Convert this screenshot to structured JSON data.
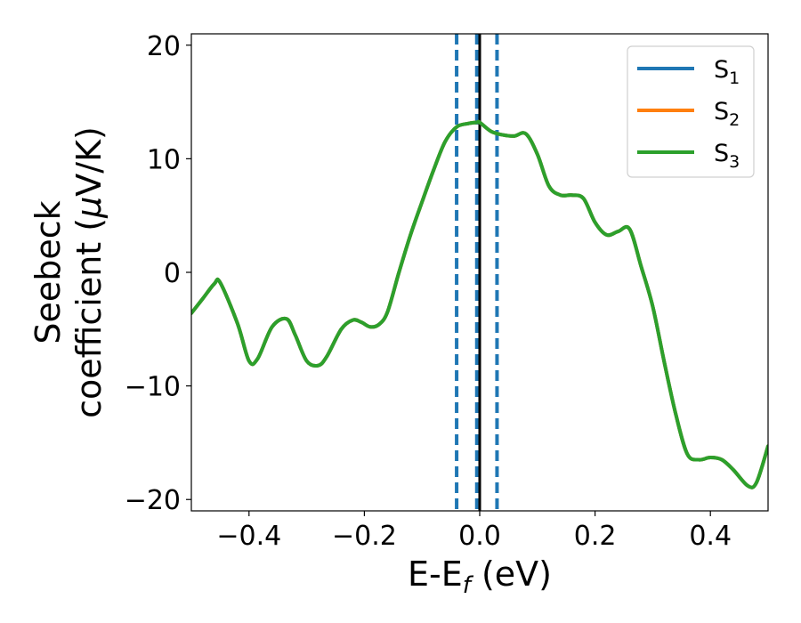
{
  "chart_data": {
    "type": "line",
    "xlabel": {
      "main": "E-E",
      "sub": "f",
      "unit": " (eV)"
    },
    "ylabel": {
      "line1": "Seebeck",
      "line2": "coefficient  (",
      "mu": "μ",
      "unit": "V/K)"
    },
    "xlim": [
      -0.5,
      0.5
    ],
    "ylim": [
      -21,
      21
    ],
    "x_ticks": [
      -0.4,
      -0.2,
      0.0,
      0.2,
      0.4
    ],
    "x_tick_labels": [
      "−0.4",
      "−0.2",
      "0.0",
      "0.2",
      "0.4"
    ],
    "y_ticks": [
      -20,
      -10,
      0,
      10,
      20
    ],
    "y_tick_labels": [
      "−20",
      "−10",
      "0",
      "10",
      "20"
    ],
    "grid": false,
    "legend_position": "top-right",
    "series": [
      {
        "name": "S",
        "sub": "1",
        "color": "#1f77b4",
        "x": [
          -0.5,
          -0.48,
          -0.46,
          -0.45,
          -0.42,
          -0.4,
          -0.385,
          -0.36,
          -0.335,
          -0.32,
          -0.3,
          -0.28,
          -0.265,
          -0.24,
          -0.22,
          -0.205,
          -0.19,
          -0.175,
          -0.16,
          -0.14,
          -0.12,
          -0.1,
          -0.08,
          -0.06,
          -0.04,
          -0.02,
          -0.005,
          0.0,
          0.02,
          0.04,
          0.06,
          0.08,
          0.1,
          0.12,
          0.14,
          0.16,
          0.18,
          0.2,
          0.22,
          0.24,
          0.26,
          0.28,
          0.3,
          0.32,
          0.34,
          0.36,
          0.38,
          0.4,
          0.42,
          0.44,
          0.465,
          0.48,
          0.5
        ],
        "y": [
          -3.6,
          -2.3,
          -1.0,
          -0.9,
          -4.5,
          -7.8,
          -7.6,
          -4.8,
          -4.1,
          -5.5,
          -7.8,
          -8.2,
          -7.4,
          -5.0,
          -4.2,
          -4.4,
          -4.8,
          -4.6,
          -3.5,
          0.0,
          3.3,
          6.2,
          9.0,
          11.5,
          12.8,
          13.1,
          13.2,
          13.2,
          12.4,
          12.1,
          12.0,
          12.2,
          10.4,
          7.6,
          6.8,
          6.8,
          6.5,
          4.4,
          3.3,
          3.6,
          3.8,
          0.5,
          -3.0,
          -7.9,
          -12.5,
          -16.0,
          -16.5,
          -16.3,
          -16.5,
          -17.4,
          -18.8,
          -18.5,
          -15.3
        ]
      },
      {
        "name": "S",
        "sub": "2",
        "color": "#ff7f0e",
        "x": [
          -0.5,
          -0.48,
          -0.46,
          -0.45,
          -0.42,
          -0.4,
          -0.385,
          -0.36,
          -0.335,
          -0.32,
          -0.3,
          -0.28,
          -0.265,
          -0.24,
          -0.22,
          -0.205,
          -0.19,
          -0.175,
          -0.16,
          -0.14,
          -0.12,
          -0.1,
          -0.08,
          -0.06,
          -0.04,
          -0.02,
          -0.005,
          0.0,
          0.02,
          0.04,
          0.06,
          0.08,
          0.1,
          0.12,
          0.14,
          0.16,
          0.18,
          0.2,
          0.22,
          0.24,
          0.26,
          0.28,
          0.3,
          0.32,
          0.34,
          0.36,
          0.38,
          0.4,
          0.42,
          0.44,
          0.465,
          0.48,
          0.5
        ],
        "y": [
          -3.6,
          -2.3,
          -1.0,
          -0.9,
          -4.5,
          -7.8,
          -7.6,
          -4.8,
          -4.1,
          -5.5,
          -7.8,
          -8.2,
          -7.4,
          -5.0,
          -4.2,
          -4.4,
          -4.8,
          -4.6,
          -3.5,
          0.0,
          3.3,
          6.2,
          9.0,
          11.5,
          12.8,
          13.1,
          13.2,
          13.2,
          12.4,
          12.1,
          12.0,
          12.2,
          10.4,
          7.6,
          6.8,
          6.8,
          6.5,
          4.4,
          3.3,
          3.6,
          3.8,
          0.5,
          -3.0,
          -7.9,
          -12.5,
          -16.0,
          -16.5,
          -16.3,
          -16.5,
          -17.4,
          -18.8,
          -18.5,
          -15.3
        ]
      },
      {
        "name": "S",
        "sub": "3",
        "color": "#2ca02c",
        "x": [
          -0.5,
          -0.48,
          -0.46,
          -0.45,
          -0.42,
          -0.4,
          -0.385,
          -0.36,
          -0.335,
          -0.32,
          -0.3,
          -0.28,
          -0.265,
          -0.24,
          -0.22,
          -0.205,
          -0.19,
          -0.175,
          -0.16,
          -0.14,
          -0.12,
          -0.1,
          -0.08,
          -0.06,
          -0.04,
          -0.02,
          -0.005,
          0.0,
          0.02,
          0.04,
          0.06,
          0.08,
          0.1,
          0.12,
          0.14,
          0.16,
          0.18,
          0.2,
          0.22,
          0.24,
          0.26,
          0.28,
          0.3,
          0.32,
          0.34,
          0.36,
          0.38,
          0.4,
          0.42,
          0.44,
          0.465,
          0.48,
          0.5
        ],
        "y": [
          -3.6,
          -2.3,
          -1.0,
          -0.9,
          -4.5,
          -7.8,
          -7.6,
          -4.8,
          -4.1,
          -5.5,
          -7.8,
          -8.2,
          -7.4,
          -5.0,
          -4.2,
          -4.4,
          -4.8,
          -4.6,
          -3.5,
          0.0,
          3.3,
          6.2,
          9.0,
          11.5,
          12.8,
          13.1,
          13.2,
          13.2,
          12.4,
          12.1,
          12.0,
          12.2,
          10.4,
          7.6,
          6.8,
          6.8,
          6.5,
          4.4,
          3.3,
          3.6,
          3.8,
          0.5,
          -3.0,
          -7.9,
          -12.5,
          -16.0,
          -16.5,
          -16.3,
          -16.5,
          -17.4,
          -18.8,
          -18.5,
          -15.3
        ]
      }
    ],
    "vertical_lines": [
      {
        "x": -0.04,
        "style": "dashed",
        "color": "#1f77b4"
      },
      {
        "x": -0.005,
        "style": "dashed",
        "color": "#1f77b4"
      },
      {
        "x": 0.03,
        "style": "dashed",
        "color": "#1f77b4"
      },
      {
        "x": 0.0,
        "style": "solid",
        "color": "#000000"
      }
    ]
  }
}
